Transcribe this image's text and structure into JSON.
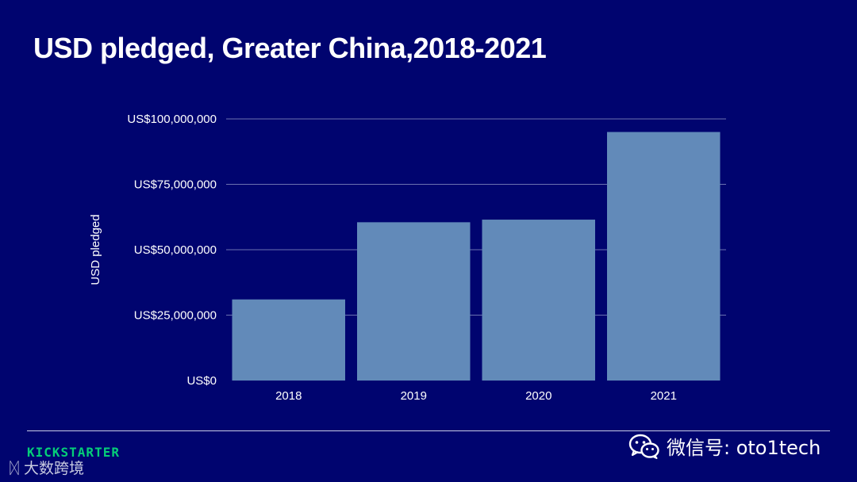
{
  "slide": {
    "title": "USD pledged,  Greater China,2018-2021"
  },
  "chart_data": {
    "type": "bar",
    "title": "USD pledged,  Greater China,2018-2021",
    "categories": [
      "2018",
      "2019",
      "2020",
      "2021"
    ],
    "values": [
      31000000,
      60500000,
      61500000,
      95000000
    ],
    "ylabel": "USD pledged",
    "xlabel": "",
    "ylim": [
      0,
      100000000
    ],
    "yticks": [
      {
        "value": 0,
        "label": "US$0"
      },
      {
        "value": 25000000,
        "label": "US$25,000,000"
      },
      {
        "value": 50000000,
        "label": "US$50,000,000"
      },
      {
        "value": 75000000,
        "label": "US$75,000,000"
      },
      {
        "value": 100000000,
        "label": "US$100,000,000"
      }
    ],
    "grid": true,
    "bar_color": "#628ab9",
    "grid_color": "#6b72b0"
  },
  "footer": {
    "brand": "KICKSTARTER",
    "brand_sub": "大数跨境",
    "wechat_label": "微信号: oto1tech"
  },
  "colors": {
    "background": "#00046f",
    "brand_green": "#05ce78"
  },
  "icons": {
    "wechat": "wechat-icon",
    "brand_logo": "dashu-logo-icon"
  }
}
